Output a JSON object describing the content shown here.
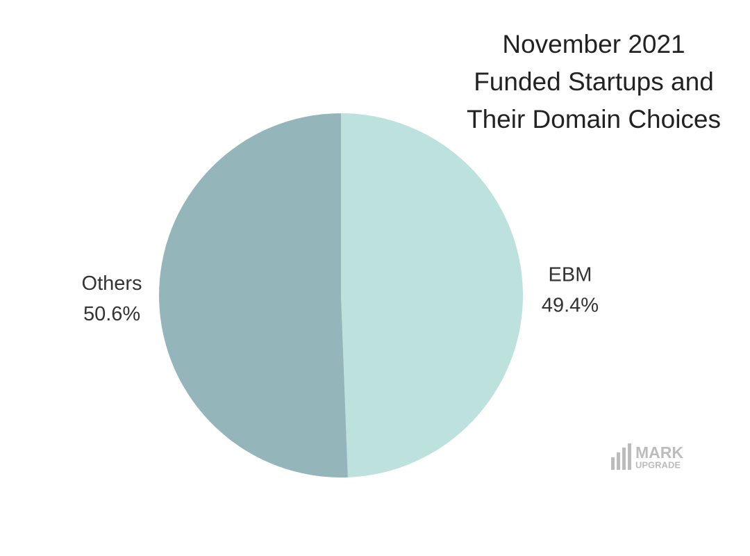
{
  "chart_data": {
    "type": "pie",
    "title": [
      "November 2021",
      "Funded Startups and",
      "Their Domain Choices"
    ],
    "categories": [
      "EBM",
      "Others"
    ],
    "values": [
      49.4,
      50.6
    ],
    "value_labels": [
      "49.4%",
      "50.6%"
    ],
    "colors": [
      "#bde1dd",
      "#94b5b9"
    ],
    "watermark": [
      "MARK",
      "UPGRADE"
    ]
  }
}
